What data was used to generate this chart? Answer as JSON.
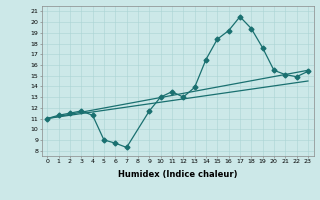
{
  "xlabel": "Humidex (Indice chaleur)",
  "ylabel": "",
  "xlim": [
    -0.5,
    23.5
  ],
  "ylim": [
    7.5,
    21.5
  ],
  "xticks": [
    0,
    1,
    2,
    3,
    4,
    5,
    6,
    7,
    8,
    9,
    10,
    11,
    12,
    13,
    14,
    15,
    16,
    17,
    18,
    19,
    20,
    21,
    22,
    23
  ],
  "yticks": [
    8,
    9,
    10,
    11,
    12,
    13,
    14,
    15,
    16,
    17,
    18,
    19,
    20,
    21
  ],
  "bg_color": "#cce8e8",
  "line_color": "#1a7070",
  "line1_x": [
    0,
    1,
    2,
    3,
    4,
    5,
    6,
    7,
    9,
    10,
    11,
    12,
    13,
    14,
    15,
    16,
    17,
    18,
    19,
    20,
    21,
    22,
    23
  ],
  "line1_y": [
    11,
    11.3,
    11.5,
    11.7,
    11.3,
    9,
    8.7,
    8.3,
    11.7,
    13,
    13.5,
    13,
    13.9,
    16.5,
    18.4,
    19.2,
    20.5,
    19.4,
    17.6,
    15.5,
    15.1,
    14.9,
    15.4
  ],
  "line2_x": [
    0,
    23
  ],
  "line2_y": [
    11,
    15.5
  ],
  "line3_x": [
    0,
    23
  ],
  "line3_y": [
    11,
    14.5
  ],
  "marker": "D",
  "markersize": 2.5,
  "linewidth": 0.9
}
